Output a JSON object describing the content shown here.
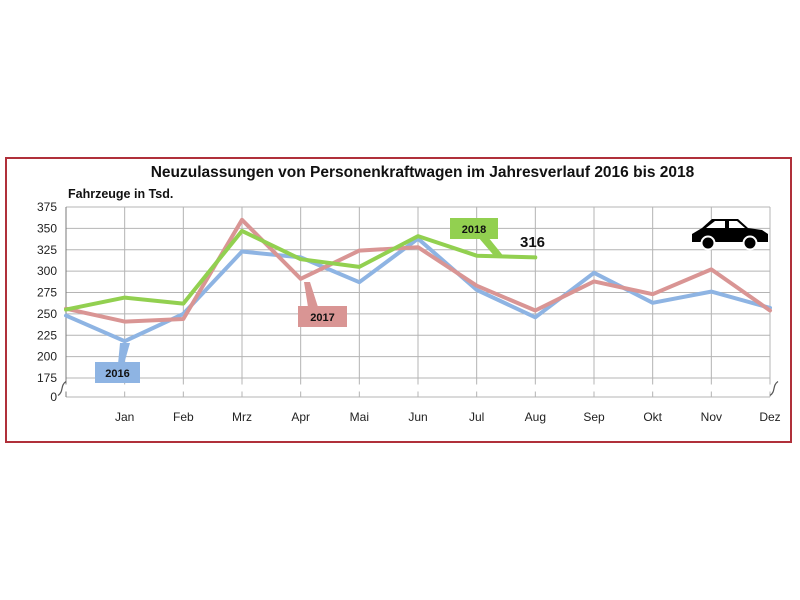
{
  "chart_data": {
    "type": "line",
    "title": "Neuzulassungen von Personenkraftwagen im Jahresverlauf 2016 bis 2018",
    "ylabel": "Fahrzeuge in Tsd.",
    "categories": [
      "",
      "Jan",
      "Feb",
      "Mrz",
      "Apr",
      "Mai",
      "Jun",
      "Jul",
      "Aug",
      "Sep",
      "Okt",
      "Nov",
      "Dez"
    ],
    "yticks": [
      "375",
      "350",
      "325",
      "300",
      "275",
      "250",
      "225",
      "200",
      "175",
      "0"
    ],
    "ylim": [
      175,
      375
    ],
    "y_axis_break": true,
    "grid": true,
    "series": [
      {
        "name": "2016",
        "color": "#8eb4e3",
        "values": [
          248,
          218,
          250,
          323,
          316,
          287,
          338,
          278,
          246,
          298,
          263,
          276,
          257
        ]
      },
      {
        "name": "2017",
        "color": "#d99594",
        "values": [
          256,
          241,
          244,
          360,
          291,
          324,
          328,
          283,
          254,
          288,
          273,
          302,
          254
        ]
      },
      {
        "name": "2018",
        "color": "#92d050",
        "values": [
          255,
          269,
          262,
          347,
          314,
          305,
          341,
          318,
          316,
          null,
          null,
          null,
          null
        ]
      }
    ],
    "annotations": [
      {
        "text": "2016",
        "series": "2016"
      },
      {
        "text": "2017",
        "series": "2017"
      },
      {
        "text": "2018",
        "series": "2018"
      },
      {
        "text": "316",
        "series": "2018"
      }
    ],
    "icon": "car-icon"
  }
}
